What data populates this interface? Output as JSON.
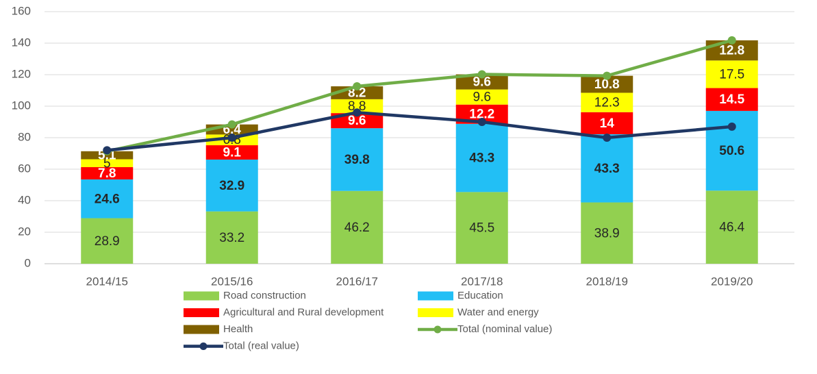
{
  "chart_data": {
    "type": "bar",
    "stacked": true,
    "categories": [
      "2014/15",
      "2015/16",
      "2016/17",
      "2017/18",
      "2018/19",
      "2019/20"
    ],
    "ylim": [
      0,
      160
    ],
    "yticks": [
      0,
      20,
      40,
      60,
      80,
      100,
      120,
      140,
      160
    ],
    "grid": true,
    "legend": "bottom",
    "series": [
      {
        "name": "Road construction",
        "color": "#92d050",
        "label_color": "#262626",
        "label_bold": false,
        "values": [
          28.9,
          33.2,
          46.2,
          45.5,
          38.9,
          46.4
        ]
      },
      {
        "name": "Education",
        "color": "#22bff5",
        "label_color": "#262626",
        "label_bold": true,
        "values": [
          24.6,
          32.9,
          39.8,
          43.3,
          43.3,
          50.6
        ]
      },
      {
        "name": "Agricultural and Rural development",
        "color": "#ff0000",
        "label_color": "#ffffff",
        "label_bold": true,
        "values": [
          7.8,
          9.1,
          9.6,
          12.2,
          14,
          14.5
        ]
      },
      {
        "name": "Water and energy",
        "color": "#ffff00",
        "label_color": "#262626",
        "label_bold": false,
        "values": [
          5,
          6.8,
          8.8,
          9.6,
          12.3,
          17.5
        ]
      },
      {
        "name": "Health",
        "color": "#7f6000",
        "label_color": "#ffffff",
        "label_bold": true,
        "values": [
          5.1,
          6.4,
          8.2,
          9.6,
          10.8,
          12.8
        ]
      },
      {
        "name": "Total (nominal value)",
        "type": "line",
        "color": "#70ad47",
        "values": [
          71.4,
          88.4,
          112.6,
          120.2,
          119.3,
          141.8
        ]
      },
      {
        "name": "Total (real value)",
        "type": "line",
        "color": "#203864",
        "values": [
          72,
          80,
          96,
          90,
          80,
          87
        ]
      }
    ]
  }
}
